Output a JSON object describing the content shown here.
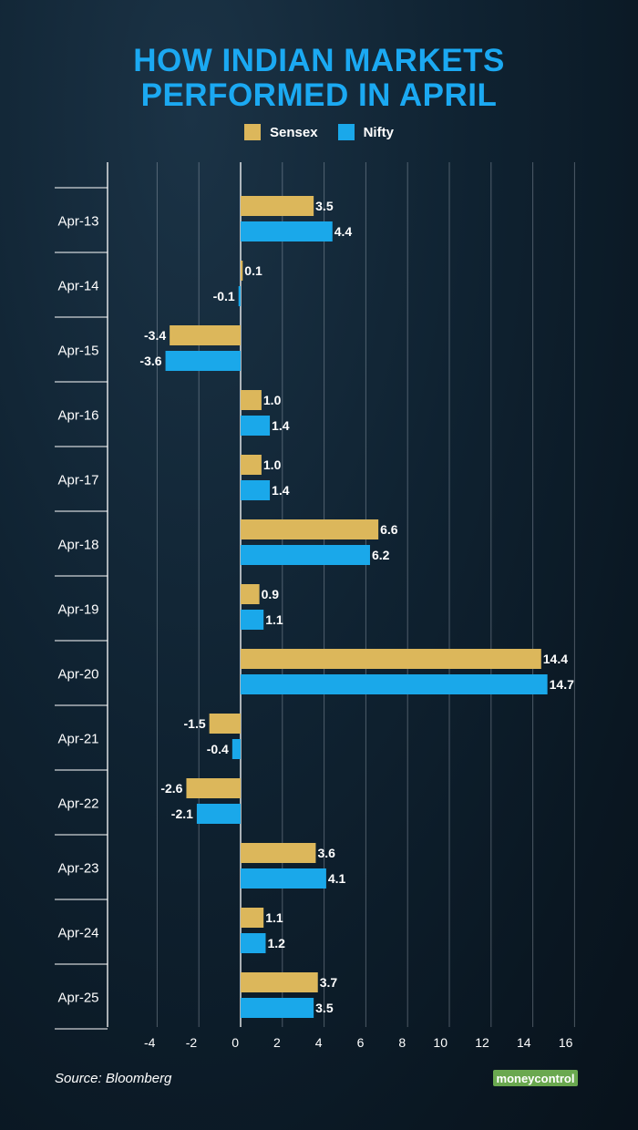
{
  "title_line1": "HOW INDIAN MARKETS",
  "title_line2": "PERFORMED IN APRIL",
  "legend": [
    {
      "label": "Sensex",
      "color": "#dcb75b"
    },
    {
      "label": "Nifty",
      "color": "#1aa8ea"
    }
  ],
  "source": "Source: Bloomberg",
  "logo_text": "moneycontrol",
  "chart_data": {
    "type": "bar",
    "orientation": "horizontal",
    "categories": [
      "Apr-13",
      "Apr-14",
      "Apr-15",
      "Apr-16",
      "Apr-17",
      "Apr-18",
      "Apr-19",
      "Apr-20",
      "Apr-21",
      "Apr-22",
      "Apr-23",
      "Apr-24",
      "Apr-25"
    ],
    "series": [
      {
        "name": "Sensex",
        "color": "#dcb75b",
        "values": [
          3.5,
          0.1,
          -3.4,
          1.0,
          1.0,
          6.6,
          0.9,
          14.4,
          -1.5,
          -2.6,
          3.6,
          1.1,
          3.7
        ]
      },
      {
        "name": "Nifty",
        "color": "#1aa8ea",
        "values": [
          4.4,
          -0.1,
          -3.6,
          1.4,
          1.4,
          6.2,
          1.1,
          14.7,
          -0.4,
          -2.1,
          4.1,
          1.2,
          3.5
        ]
      }
    ],
    "value_labels": {
      "Sensex": [
        "3.5",
        "0.1",
        "-3.4",
        "1.0",
        "1.0",
        "6.6",
        "0.9",
        "14.4",
        "-1.5",
        "-2.6",
        "3.6",
        "1.1",
        "3.7"
      ],
      "Nifty": [
        "4.4",
        "-0.1",
        "-3.6",
        "1.4",
        "1.4",
        "6.2",
        "1.1",
        "14.7",
        "-0.4",
        "-2.1",
        "4.1",
        "1.2",
        "3.5"
      ]
    },
    "xlim": [
      -6,
      16
    ],
    "xticks": [
      -4,
      -2,
      0,
      2,
      4,
      6,
      8,
      10,
      12,
      14,
      16
    ],
    "xtick_labels": [
      "-4",
      "-2",
      "0",
      "2",
      "4",
      "6",
      "8",
      "10",
      "12",
      "14",
      "16"
    ],
    "grid": true,
    "legend_position": "top-center"
  }
}
